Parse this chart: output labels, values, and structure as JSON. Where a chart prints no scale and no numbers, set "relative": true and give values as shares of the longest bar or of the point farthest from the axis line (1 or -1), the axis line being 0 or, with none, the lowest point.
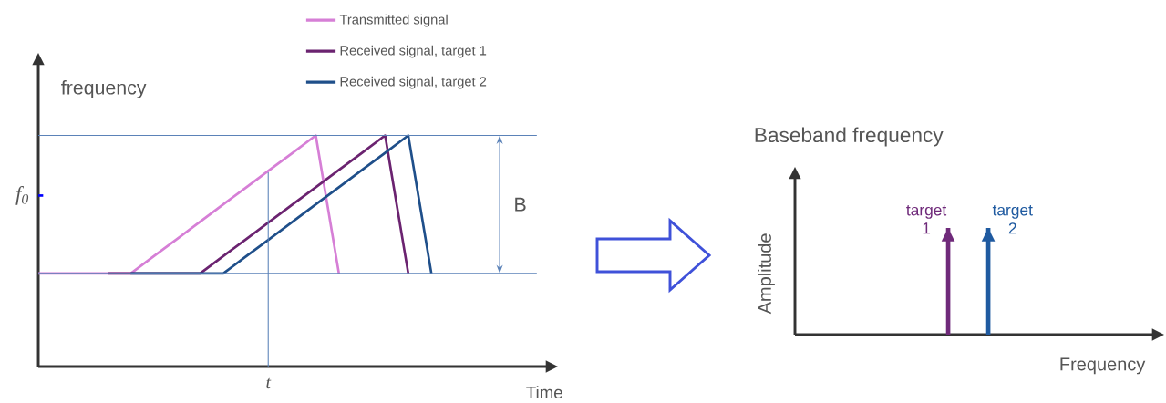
{
  "chart_data": [
    {
      "type": "line",
      "relative": true,
      "xlabel": "Time",
      "ylabel": "frequency",
      "legend": "top right",
      "categories": [
        null,
        null,
        null,
        null,
        null,
        null,
        null,
        null,
        null,
        null,
        null,
        null,
        null,
        null,
        null,
        null,
        null,
        null,
        null,
        null,
        null,
        null,
        null
      ],
      "series": [
        {
          "name": "Transmitted signal",
          "color": "#d67fd6",
          "values": [
            0.403,
            0.403,
            0.403,
            0.403,
            0.403,
            0.478,
            0.552,
            0.627,
            0.702,
            0.776,
            0.851,
            0.925,
            1,
            0.403,
            null,
            null,
            null,
            null,
            null,
            null,
            null,
            null,
            null
          ]
        },
        {
          "name": "Received signal, target 1",
          "color": "#6b2370",
          "values": [
            null,
            null,
            null,
            0.403,
            0.403,
            0.403,
            0.403,
            0.403,
            0.478,
            0.552,
            0.627,
            0.702,
            0.776,
            0.851,
            0.925,
            1,
            0.403,
            null,
            null,
            null,
            null,
            null,
            null
          ]
        },
        {
          "name": "Received signal, target 2",
          "color": "#1f4f8a",
          "values": [
            null,
            null,
            null,
            null,
            0.403,
            0.403,
            0.403,
            0.403,
            0.403,
            0.478,
            0.552,
            0.627,
            0.702,
            0.776,
            0.851,
            0.925,
            1,
            0.403,
            null,
            null,
            null,
            null,
            null
          ]
        }
      ],
      "ref_lines": [
        {
          "axis": "y",
          "value": 1,
          "color": "#5b82b8"
        },
        {
          "axis": "y",
          "value": 0.403,
          "color": "#5b82b8"
        }
      ],
      "annotations": [
        "f$_{0}$",
        "B",
        "t"
      ]
    },
    {
      "type": "bar",
      "relative": true,
      "title": "Baseband frequency",
      "xlabel": "Frequency",
      "ylabel": "Amplitude",
      "categories": [
        "target 1",
        "target 2"
      ],
      "values": [
        1,
        1
      ],
      "colors": [
        "#6f2a7a",
        "#1f5aa0"
      ]
    }
  ]
}
